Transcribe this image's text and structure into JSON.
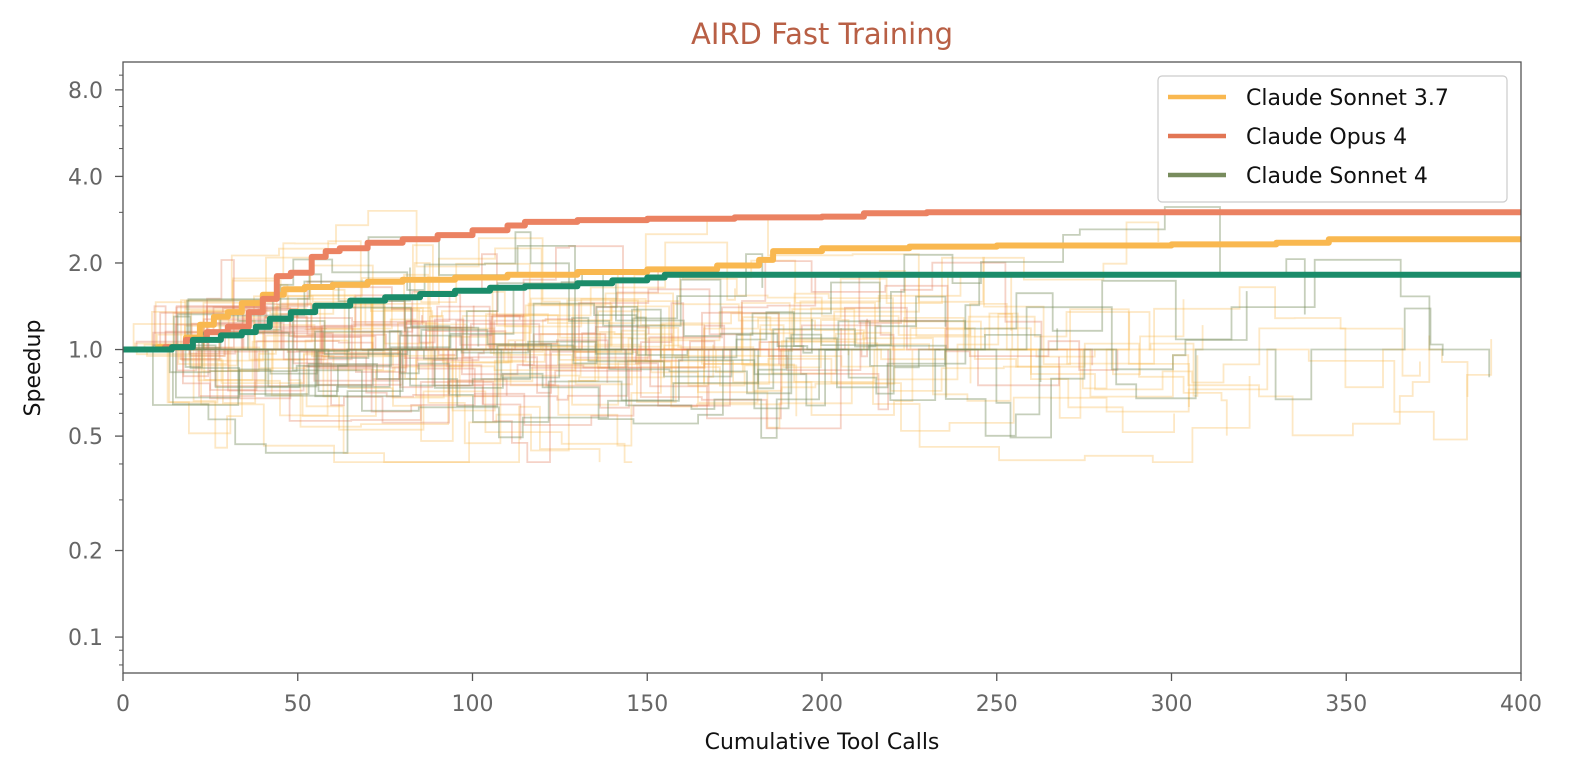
{
  "chart_data": {
    "type": "line",
    "title": "AIRD Fast Training",
    "xlabel": "Cumulative Tool Calls",
    "ylabel": "Speedup",
    "xlim": [
      0,
      400
    ],
    "ylim": [
      0.075,
      10.0
    ],
    "yscale": "log",
    "x_ticks": [
      0,
      50,
      100,
      150,
      200,
      250,
      300,
      350,
      400
    ],
    "y_ticks": [
      0.1,
      0.2,
      0.5,
      1.0,
      2.0,
      4.0,
      8.0
    ],
    "y_tick_labels": [
      "0.1",
      "0.2",
      "0.5",
      "1.0",
      "2.0",
      "4.0",
      "8.0"
    ],
    "grid": false,
    "legend_position": "top-right",
    "line_style": "step",
    "colors": {
      "title": "#B85F45",
      "axis": "#555555",
      "sonnet37": "#F9B850",
      "opus4": "#E27654",
      "sonnet4": "#788C5D",
      "sonnet4_line": "#1B8C6A"
    },
    "series": [
      {
        "name": "Claude Sonnet 3.7",
        "color": "#F9B850",
        "legend_color": "#F9B850",
        "x": [
          0,
          10,
          18,
          22,
          26,
          30,
          34,
          40,
          46,
          52,
          60,
          70,
          80,
          95,
          110,
          130,
          150,
          170,
          182,
          186,
          200,
          225,
          250,
          300,
          330,
          345,
          400
        ],
        "values": [
          1.0,
          1.02,
          1.1,
          1.22,
          1.3,
          1.35,
          1.45,
          1.55,
          1.62,
          1.65,
          1.68,
          1.72,
          1.75,
          1.78,
          1.82,
          1.86,
          1.9,
          1.96,
          2.05,
          2.2,
          2.25,
          2.28,
          2.3,
          2.32,
          2.35,
          2.42,
          2.42
        ]
      },
      {
        "name": "Claude Opus 4",
        "color": "#EB8262",
        "legend_color": "#E27654",
        "x": [
          0,
          12,
          18,
          24,
          30,
          36,
          40,
          44,
          48,
          54,
          58,
          62,
          70,
          80,
          90,
          100,
          110,
          115,
          130,
          150,
          175,
          200,
          212,
          230,
          260,
          300,
          400
        ],
        "values": [
          1.0,
          1.02,
          1.08,
          1.15,
          1.2,
          1.35,
          1.5,
          1.8,
          1.85,
          2.1,
          2.2,
          2.25,
          2.35,
          2.42,
          2.5,
          2.6,
          2.7,
          2.78,
          2.82,
          2.85,
          2.88,
          2.9,
          2.98,
          3.0,
          3.0,
          3.0,
          3.0
        ]
      },
      {
        "name": "Claude Sonnet 4",
        "color": "#1B8C6A",
        "legend_color": "#788C5D",
        "x": [
          0,
          14,
          20,
          28,
          34,
          38,
          42,
          48,
          55,
          65,
          75,
          85,
          95,
          105,
          115,
          130,
          140,
          150,
          155,
          170,
          200,
          400
        ],
        "values": [
          1.0,
          1.02,
          1.08,
          1.12,
          1.15,
          1.2,
          1.28,
          1.35,
          1.42,
          1.48,
          1.52,
          1.56,
          1.6,
          1.64,
          1.66,
          1.7,
          1.74,
          1.78,
          1.82,
          1.82,
          1.82,
          1.82
        ]
      }
    ]
  }
}
